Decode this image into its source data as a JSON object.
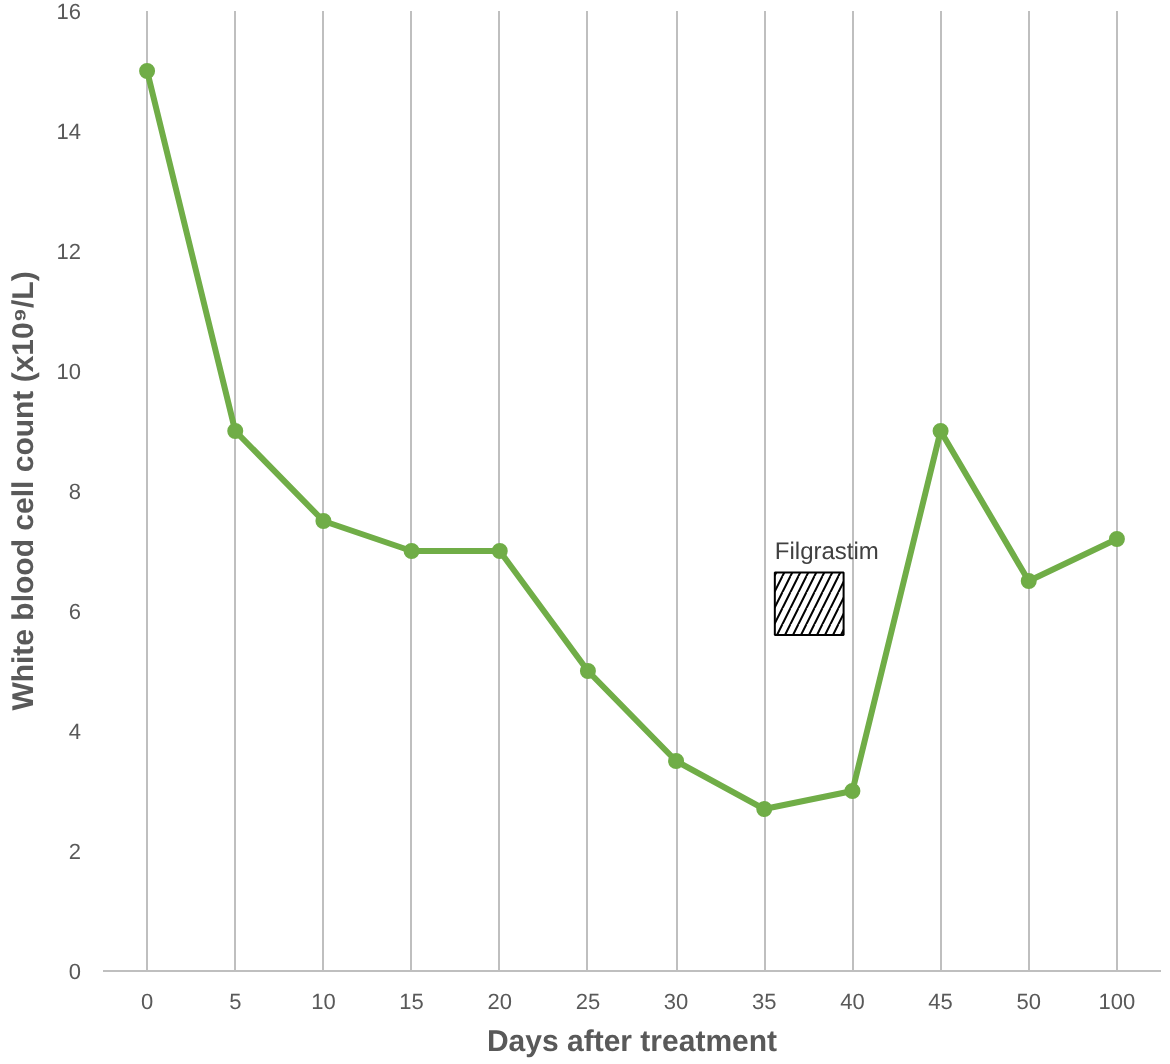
{
  "chart_data": {
    "type": "line",
    "xlabel": "Days after treatment",
    "ylabel": "White blood cell count (x10⁹/L)",
    "categories": [
      "0",
      "5",
      "10",
      "15",
      "20",
      "25",
      "30",
      "35",
      "40",
      "45",
      "50",
      "100"
    ],
    "series": [
      {
        "color": "#70ad47",
        "values": [
          15,
          9,
          7.5,
          7,
          7,
          5,
          3.5,
          2.7,
          3,
          9,
          6.5,
          7.2
        ]
      }
    ],
    "marker": "circle",
    "ylim": [
      0,
      16
    ],
    "yticks": [
      0,
      2,
      4,
      6,
      8,
      10,
      12,
      14,
      16
    ],
    "grid": "x",
    "bands": [
      {
        "axis": "x",
        "from": "35",
        "to": "40",
        "label": "Filgrastim"
      }
    ]
  }
}
